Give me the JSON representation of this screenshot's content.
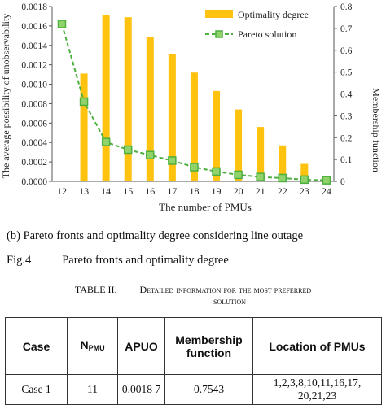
{
  "chart_data": {
    "type": "bar+line",
    "categories": [
      "12",
      "13",
      "14",
      "15",
      "16",
      "17",
      "18",
      "19",
      "20",
      "21",
      "22",
      "23",
      "24"
    ],
    "series": [
      {
        "name": "Optimality degree",
        "kind": "bar",
        "axis": "left",
        "values": [
          null,
          0.00111,
          0.00171,
          0.00169,
          0.00149,
          0.00131,
          0.00112,
          0.00093,
          0.00074,
          0.00056,
          0.00037,
          0.00018,
          0.0
        ]
      },
      {
        "name": "Pareto solution",
        "kind": "line",
        "axis": "right",
        "values": [
          0.72,
          0.365,
          0.18,
          0.145,
          0.12,
          0.095,
          0.065,
          0.045,
          0.03,
          0.02,
          0.015,
          0.008,
          0.005
        ]
      }
    ],
    "xlabel": "The number of PMUs",
    "ylabel": "The average possibility of unobservability",
    "y2label": "Membership function",
    "ylim": [
      0,
      0.0018
    ],
    "y2lim": [
      0,
      0.8
    ],
    "yticks": [
      "0.0000",
      "0.0002",
      "0.0004",
      "0.0006",
      "0.0008",
      "0.0010",
      "0.0012",
      "0.0014",
      "0.0016",
      "0.0018"
    ],
    "y2ticks": [
      "0",
      "0.1",
      "0.2",
      "0.3",
      "0.4",
      "0.5",
      "0.6",
      "0.7",
      "0.8"
    ],
    "legend_position": "top-right",
    "colors": {
      "bar": "#FFC20E",
      "line": "#4CAF3F",
      "marker_fill": "#8FD36A"
    }
  },
  "captions": {
    "subfigure": "(b) Pareto fronts and optimality degree considering line outage",
    "fig_number": "Fig.4",
    "fig_title": "Pareto fronts and optimality degree"
  },
  "table": {
    "number": "TABLE II.",
    "title_line1": "Detailed information for the most preferred",
    "title_line2": "solution",
    "headers": {
      "case": "Case",
      "npmu_main": "N",
      "npmu_sub": "PMU",
      "apuo": "APUO",
      "membership": "Membership function",
      "location": "Location of PMUs"
    },
    "rows": [
      {
        "case": "Case 1",
        "npmu": "11",
        "apuo": "0.0018 7",
        "membership": "0.7543",
        "location": "1,2,3,8,10,11,16,17, 20,21,23"
      }
    ]
  }
}
